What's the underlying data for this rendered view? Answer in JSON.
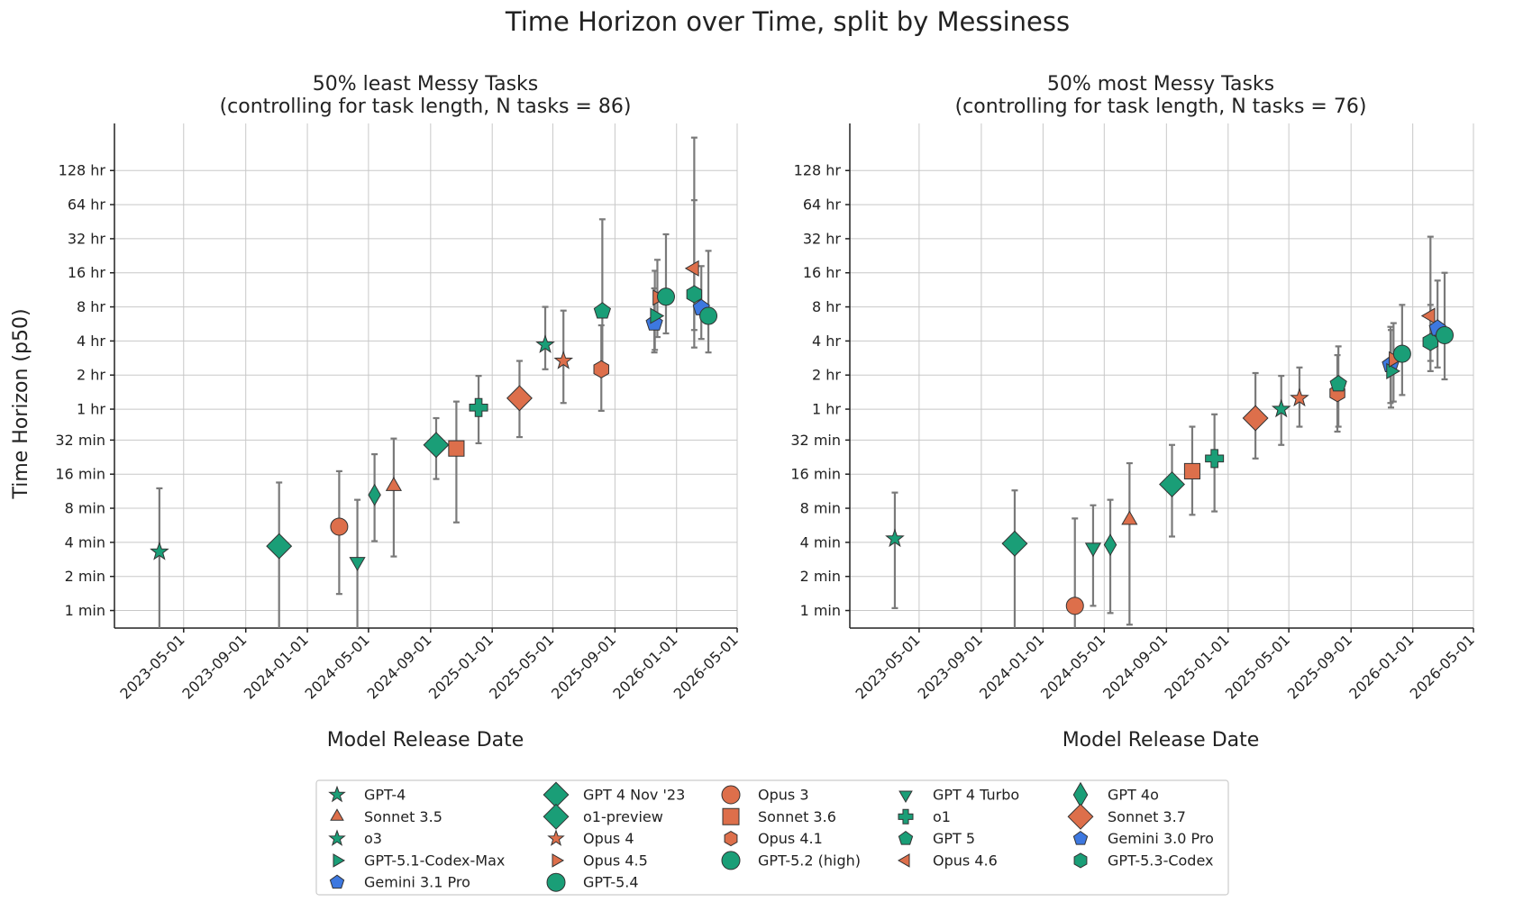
{
  "colors": {
    "green": "#1a9e77",
    "orange": "#dd6f4b",
    "blue": "#3d78e0",
    "error": "#7a7a7a"
  },
  "chart_data": {
    "type": "scatter",
    "title": "Time Horizon over Time, split by Messiness",
    "ylabel": "Time Horizon (p50)",
    "xlabel": "Model Release Date",
    "yscale": "log2",
    "y_ticks": [
      {
        "minutes": 1,
        "label": "1 min"
      },
      {
        "minutes": 2,
        "label": "2 min"
      },
      {
        "minutes": 4,
        "label": "4 min"
      },
      {
        "minutes": 8,
        "label": "8 min"
      },
      {
        "minutes": 16,
        "label": "16 min"
      },
      {
        "minutes": 32,
        "label": "32 min"
      },
      {
        "minutes": 60,
        "label": "1 hr"
      },
      {
        "minutes": 120,
        "label": "2 hr"
      },
      {
        "minutes": 240,
        "label": "4 hr"
      },
      {
        "minutes": 480,
        "label": "8 hr"
      },
      {
        "minutes": 960,
        "label": "16 hr"
      },
      {
        "minutes": 1920,
        "label": "32 hr"
      },
      {
        "minutes": 3840,
        "label": "64 hr"
      },
      {
        "minutes": 7680,
        "label": "128 hr"
      }
    ],
    "x_ticks": [
      "2023-05-01",
      "2023-09-01",
      "2024-01-01",
      "2024-05-01",
      "2024-09-01",
      "2025-01-01",
      "2025-05-01",
      "2025-09-01",
      "2026-01-01",
      "2026-05-01"
    ],
    "xlim": [
      "2022-12-15",
      "2026-05-01"
    ],
    "ylim_minutes": [
      0.7,
      20000
    ],
    "grid": true,
    "legend_position": "bottom-center",
    "models": [
      {
        "name": "GPT-4",
        "marker": "star",
        "color": "green"
      },
      {
        "name": "GPT 4 Nov '23",
        "marker": "diamond",
        "color": "green"
      },
      {
        "name": "Opus 3",
        "marker": "circle",
        "color": "orange"
      },
      {
        "name": "GPT 4 Turbo",
        "marker": "triangle-down",
        "color": "green"
      },
      {
        "name": "GPT 4o",
        "marker": "thin-diamond",
        "color": "green"
      },
      {
        "name": "Sonnet 3.5",
        "marker": "triangle-up",
        "color": "orange"
      },
      {
        "name": "o1-preview",
        "marker": "diamond",
        "color": "green"
      },
      {
        "name": "Sonnet 3.6",
        "marker": "square",
        "color": "orange"
      },
      {
        "name": "o1",
        "marker": "plus",
        "color": "green"
      },
      {
        "name": "Sonnet 3.7",
        "marker": "diamond",
        "color": "orange"
      },
      {
        "name": "o3",
        "marker": "star",
        "color": "green"
      },
      {
        "name": "Opus 4",
        "marker": "star",
        "color": "orange"
      },
      {
        "name": "Opus 4.1",
        "marker": "hexagon",
        "color": "orange"
      },
      {
        "name": "GPT 5",
        "marker": "pentagon",
        "color": "green"
      },
      {
        "name": "Gemini 3.0 Pro",
        "marker": "pentagon",
        "color": "blue"
      },
      {
        "name": "GPT-5.1-Codex-Max",
        "marker": "triangle-right",
        "color": "green"
      },
      {
        "name": "Opus 4.5",
        "marker": "triangle-right",
        "color": "orange"
      },
      {
        "name": "GPT-5.2 (high)",
        "marker": "circle",
        "color": "green"
      },
      {
        "name": "Opus 4.6",
        "marker": "triangle-left",
        "color": "orange"
      },
      {
        "name": "GPT-5.3-Codex",
        "marker": "hexagon",
        "color": "green"
      },
      {
        "name": "Gemini 3.1 Pro",
        "marker": "pentagon",
        "color": "blue"
      },
      {
        "name": "GPT-5.4",
        "marker": "circle",
        "color": "green"
      }
    ],
    "panels": [
      {
        "title_line1": "50% least Messy Tasks",
        "title_line2": "(controlling for task length, N tasks = 86)",
        "points": [
          {
            "model": "GPT-4",
            "date": "2023-03-14",
            "y": 3.3,
            "lo": 0.6,
            "hi": 12
          },
          {
            "model": "GPT 4 Nov '23",
            "date": "2023-11-06",
            "y": 3.7,
            "lo": 0.6,
            "hi": 13.5
          },
          {
            "model": "Opus 3",
            "date": "2024-03-04",
            "y": 5.5,
            "lo": 1.4,
            "hi": 17
          },
          {
            "model": "GPT 4 Turbo",
            "date": "2024-04-09",
            "y": 2.7,
            "lo": 0.6,
            "hi": 9.5
          },
          {
            "model": "GPT 4o",
            "date": "2024-05-13",
            "y": 10.5,
            "lo": 4.1,
            "hi": 24
          },
          {
            "model": "Sonnet 3.5",
            "date": "2024-06-20",
            "y": 12.5,
            "lo": 3,
            "hi": 33
          },
          {
            "model": "o1-preview",
            "date": "2024-09-12",
            "y": 29,
            "lo": 14.5,
            "hi": 50
          },
          {
            "model": "Sonnet 3.6",
            "date": "2024-10-22",
            "y": 27,
            "lo": 6,
            "hi": 70
          },
          {
            "model": "o1",
            "date": "2024-12-05",
            "y": 62,
            "lo": 30,
            "hi": 118
          },
          {
            "model": "Sonnet 3.7",
            "date": "2025-02-24",
            "y": 75,
            "lo": 34,
            "hi": 160
          },
          {
            "model": "o3",
            "date": "2025-04-16",
            "y": 222,
            "lo": 135,
            "hi": 480
          },
          {
            "model": "Opus 4",
            "date": "2025-05-22",
            "y": 160,
            "lo": 68,
            "hi": 445
          },
          {
            "model": "Opus 4.1",
            "date": "2025-08-05",
            "y": 135,
            "lo": 58,
            "hi": 330
          },
          {
            "model": "GPT 5",
            "date": "2025-08-07",
            "y": 440,
            "lo": 140,
            "hi": 2850
          },
          {
            "model": "Gemini 3.0 Pro",
            "date": "2025-11-18",
            "y": 345,
            "lo": 190,
            "hi": 700
          },
          {
            "model": "GPT-5.1-Codex-Max",
            "date": "2025-11-19",
            "y": 400,
            "lo": 200,
            "hi": 1000
          },
          {
            "model": "Opus 4.5",
            "date": "2025-11-24",
            "y": 580,
            "lo": 260,
            "hi": 1250
          },
          {
            "model": "GPT-5.2 (high)",
            "date": "2025-12-11",
            "y": 590,
            "lo": 280,
            "hi": 2100
          },
          {
            "model": "Opus 4.6",
            "date": "2026-02-05",
            "y": 1050,
            "lo": 300,
            "hi": 15000
          },
          {
            "model": "GPT-5.3-Codex",
            "date": "2026-02-05",
            "y": 620,
            "lo": 210,
            "hi": 4200
          },
          {
            "model": "Gemini 3.1 Pro",
            "date": "2026-02-19",
            "y": 470,
            "lo": 250,
            "hi": 1100
          },
          {
            "model": "GPT-5.4",
            "date": "2026-03-05",
            "y": 400,
            "lo": 190,
            "hi": 1500
          }
        ]
      },
      {
        "title_line1": "50% most Messy Tasks",
        "title_line2": "(controlling for task length, N tasks = 76)",
        "points": [
          {
            "model": "GPT-4",
            "date": "2023-03-14",
            "y": 4.3,
            "lo": 1.05,
            "hi": 11
          },
          {
            "model": "GPT 4 Nov '23",
            "date": "2023-11-06",
            "y": 3.9,
            "lo": 0.6,
            "hi": 11.5
          },
          {
            "model": "Opus 3",
            "date": "2024-03-04",
            "y": 1.1,
            "lo": 0.6,
            "hi": 6.5
          },
          {
            "model": "GPT 4 Turbo",
            "date": "2024-04-09",
            "y": 3.6,
            "lo": 1.1,
            "hi": 8.5
          },
          {
            "model": "GPT 4o",
            "date": "2024-05-13",
            "y": 3.8,
            "lo": 0.95,
            "hi": 9.5
          },
          {
            "model": "Sonnet 3.5",
            "date": "2024-06-20",
            "y": 6.3,
            "lo": 0.75,
            "hi": 20
          },
          {
            "model": "o1-preview",
            "date": "2024-09-12",
            "y": 13,
            "lo": 4.5,
            "hi": 29
          },
          {
            "model": "Sonnet 3.6",
            "date": "2024-10-22",
            "y": 17,
            "lo": 7,
            "hi": 42
          },
          {
            "model": "o1",
            "date": "2024-12-05",
            "y": 22,
            "lo": 7.5,
            "hi": 54
          },
          {
            "model": "Sonnet 3.7",
            "date": "2025-02-24",
            "y": 50,
            "lo": 22,
            "hi": 125
          },
          {
            "model": "o3",
            "date": "2025-04-16",
            "y": 60,
            "lo": 29,
            "hi": 118
          },
          {
            "model": "Opus 4",
            "date": "2025-05-22",
            "y": 75,
            "lo": 42,
            "hi": 140
          },
          {
            "model": "Opus 4.1",
            "date": "2025-08-05",
            "y": 83,
            "lo": 38,
            "hi": 180
          },
          {
            "model": "GPT 5",
            "date": "2025-08-07",
            "y": 100,
            "lo": 42,
            "hi": 215
          },
          {
            "model": "Gemini 3.0 Pro",
            "date": "2025-11-18",
            "y": 148,
            "lo": 68,
            "hi": 320
          },
          {
            "model": "GPT-5.1-Codex-Max",
            "date": "2025-11-19",
            "y": 130,
            "lo": 62,
            "hi": 300
          },
          {
            "model": "Opus 4.5",
            "date": "2025-11-24",
            "y": 165,
            "lo": 70,
            "hi": 345
          },
          {
            "model": "GPT-5.2 (high)",
            "date": "2025-12-11",
            "y": 185,
            "lo": 80,
            "hi": 500
          },
          {
            "model": "Opus 4.6",
            "date": "2026-02-05",
            "y": 400,
            "lo": 160,
            "hi": 2000
          },
          {
            "model": "GPT-5.3-Codex",
            "date": "2026-02-05",
            "y": 235,
            "lo": 130,
            "hi": 500
          },
          {
            "model": "Gemini 3.1 Pro",
            "date": "2026-02-19",
            "y": 310,
            "lo": 140,
            "hi": 820
          },
          {
            "model": "GPT-5.4",
            "date": "2026-03-05",
            "y": 270,
            "lo": 110,
            "hi": 960
          }
        ]
      }
    ],
    "legend_order": [
      "GPT-4",
      "GPT 4 Nov '23",
      "Opus 3",
      "GPT 4 Turbo",
      "GPT 4o",
      "Sonnet 3.5",
      "o1-preview",
      "Sonnet 3.6",
      "o1",
      "Sonnet 3.7",
      "o3",
      "Opus 4",
      "Opus 4.1",
      "GPT 5",
      "Gemini 3.0 Pro",
      "GPT-5.1-Codex-Max",
      "Opus 4.5",
      "GPT-5.2 (high)",
      "Opus 4.6",
      "GPT-5.3-Codex",
      "Gemini 3.1 Pro",
      "GPT-5.4"
    ]
  }
}
